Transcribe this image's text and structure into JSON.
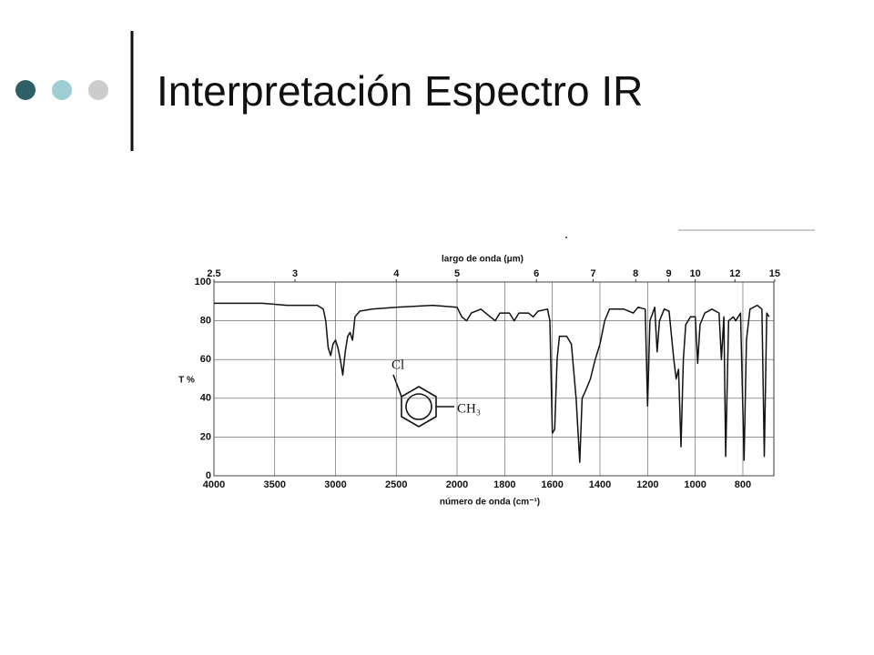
{
  "slide": {
    "title": "Interpretación Espectro IR"
  },
  "chart_data": {
    "type": "line",
    "x_label_top": "largo de onda (μm)",
    "xlabel": "número de onda (cm⁻¹)",
    "ylabel": "T %",
    "annotations": [
      "Cl",
      "CH₃"
    ],
    "x": [
      4000,
      3600,
      3400,
      3150,
      3100,
      3080,
      3060,
      3040,
      3020,
      3000,
      2980,
      2960,
      2940,
      2920,
      2900,
      2880,
      2860,
      2840,
      2800,
      2700,
      2500,
      2200,
      2000,
      1980,
      1960,
      1940,
      1900,
      1860,
      1840,
      1820,
      1780,
      1760,
      1740,
      1700,
      1680,
      1660,
      1620,
      1610,
      1600,
      1590,
      1580,
      1570,
      1540,
      1520,
      1500,
      1485,
      1475,
      1460,
      1440,
      1420,
      1400,
      1380,
      1360,
      1300,
      1260,
      1240,
      1210,
      1200,
      1190,
      1170,
      1165,
      1160,
      1150,
      1130,
      1110,
      1090,
      1080,
      1070,
      1060,
      1050,
      1040,
      1020,
      1000,
      990,
      980,
      960,
      930,
      900,
      890,
      880,
      872,
      860,
      840,
      830,
      810,
      795,
      785,
      770,
      740,
      720,
      710,
      700,
      690
    ],
    "series": [
      {
        "color": "#111111",
        "values": [
          89,
          89,
          88,
          88,
          86,
          80,
          66,
          62,
          68,
          70,
          66,
          60,
          52,
          64,
          72,
          74,
          70,
          82,
          85,
          86,
          87,
          88,
          87,
          82,
          80,
          84,
          86,
          82,
          80,
          84,
          84,
          80,
          84,
          84,
          82,
          85,
          86,
          80,
          22,
          24,
          60,
          72,
          72,
          68,
          40,
          7,
          40,
          44,
          50,
          60,
          68,
          80,
          86,
          86,
          84,
          87,
          86,
          36,
          80,
          87,
          75,
          64,
          80,
          86,
          85,
          60,
          50,
          55,
          15,
          60,
          78,
          82,
          82,
          58,
          78,
          84,
          86,
          84,
          60,
          82,
          10,
          80,
          82,
          80,
          84,
          8,
          70,
          86,
          88,
          86,
          10,
          84,
          82
        ]
      }
    ],
    "xlim": [
      4000,
      670
    ],
    "x_scale_break": 2000,
    "xticks": [
      4000,
      3500,
      3000,
      2500,
      2000,
      1800,
      1600,
      1400,
      1200,
      1000,
      800
    ],
    "x2ticks": [
      2.5,
      3,
      4,
      5,
      6,
      7,
      8,
      9,
      10,
      12,
      15
    ],
    "ylim": [
      0,
      100
    ],
    "yticks": [
      0,
      20,
      40,
      60,
      80,
      100
    ],
    "grid": true
  }
}
